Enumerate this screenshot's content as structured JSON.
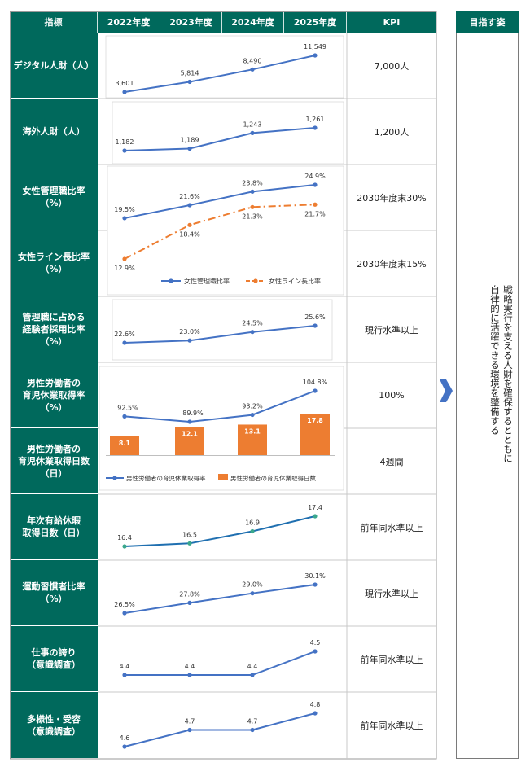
{
  "header": {
    "metric": "指標",
    "years": [
      "2022年度",
      "2023年度",
      "2024年度",
      "2025年度"
    ],
    "kpi": "KPI",
    "goal": "目指す姿"
  },
  "goal_text": "戦略実行を支える人財を確保するとともに\n自律的に活躍できる環境を整備する",
  "colors": {
    "header_bg": "#00695c",
    "line": "#4472c4",
    "dash_line": "#ed7d31",
    "bar": "#ed7d31",
    "arrow": "#4472c4"
  },
  "rows": [
    {
      "label": "デジタル人財（人）",
      "kpi": "7,000人"
    },
    {
      "label": "海外人財（人）",
      "kpi": "1,200人"
    },
    {
      "label": "女性管理職比率\n（%）",
      "kpi": "2030年度末30%"
    },
    {
      "label": "女性ライン長比率\n（%）",
      "kpi": "2030年度末15%"
    },
    {
      "label": "管理職に占める\n経験者採用比率\n（%）",
      "kpi": "現行水準以上"
    },
    {
      "label": "男性労働者の\n育児休業取得率\n（%）",
      "kpi": "100%"
    },
    {
      "label": "男性労働者の\n育児休業取得日数\n（日）",
      "kpi": "4週間"
    },
    {
      "label": "年次有給休暇\n取得日数（日）",
      "kpi": "前年同水準以上"
    },
    {
      "label": "運動習慣者比率\n（%）",
      "kpi": "現行水準以上"
    },
    {
      "label": "仕事の誇り\n（意識調査）",
      "kpi": "前年同水準以上"
    },
    {
      "label": "多様性・受容\n（意識調査）",
      "kpi": "前年同水準以上"
    }
  ],
  "chart_data": [
    {
      "type": "line",
      "x": [
        "2022年度",
        "2023年度",
        "2024年度",
        "2025年度"
      ],
      "series": [
        {
          "values": [
            3601,
            5814,
            8490,
            11549
          ],
          "labels": [
            "3,601",
            "5,814",
            "8,490",
            "11,549"
          ]
        }
      ]
    },
    {
      "type": "line",
      "x": [
        "2022年度",
        "2023年度",
        "2024年度",
        "2025年度"
      ],
      "series": [
        {
          "values": [
            1182,
            1189,
            1243,
            1261
          ],
          "labels": [
            "1,182",
            "1,189",
            "1,243",
            "1,261"
          ]
        }
      ]
    },
    {
      "type": "line",
      "x": [
        "2022年度",
        "2023年度",
        "2024年度",
        "2025年度"
      ],
      "series": [
        {
          "name": "女性管理職比率",
          "values": [
            19.5,
            21.6,
            23.8,
            24.9
          ],
          "labels": [
            "19.5%",
            "21.6%",
            "23.8%",
            "24.9%"
          ],
          "style": "solid"
        },
        {
          "name": "女性ライン長比率",
          "values": [
            12.9,
            18.4,
            21.3,
            21.7
          ],
          "labels": [
            "12.9%",
            "18.4%",
            "21.3%",
            "21.7%"
          ],
          "style": "dash-dot"
        }
      ],
      "legend": "bottom"
    },
    {
      "type": "line",
      "x": [
        "2022年度",
        "2023年度",
        "2024年度",
        "2025年度"
      ],
      "series": [
        {
          "values": [
            22.6,
            23.0,
            24.5,
            25.6
          ],
          "labels": [
            "22.6%",
            "23.0%",
            "24.5%",
            "25.6%"
          ]
        }
      ]
    },
    {
      "type": "bar+line",
      "x": [
        "2022年度",
        "2023年度",
        "2024年度",
        "2025年度"
      ],
      "series": [
        {
          "name": "男性労働者の育児休業取得率",
          "type": "line",
          "values": [
            92.5,
            89.9,
            93.2,
            104.8
          ],
          "labels": [
            "92.5%",
            "89.9%",
            "93.2%",
            "104.8%"
          ]
        },
        {
          "name": "男性労働者の育児休業取得日数",
          "type": "bar",
          "values": [
            8.1,
            12.1,
            13.1,
            17.8
          ],
          "labels": [
            "8.1",
            "12.1",
            "13.1",
            "17.8"
          ]
        }
      ],
      "legend": "bottom"
    },
    {
      "type": "line",
      "x": [
        "2022年度",
        "2023年度",
        "2024年度",
        "2025年度"
      ],
      "series": [
        {
          "values": [
            16.4,
            16.5,
            16.9,
            17.4
          ],
          "labels": [
            "16.4",
            "16.5",
            "16.9",
            "17.4"
          ]
        }
      ]
    },
    {
      "type": "line",
      "x": [
        "2022年度",
        "2023年度",
        "2024年度",
        "2025年度"
      ],
      "series": [
        {
          "values": [
            26.5,
            27.8,
            29.0,
            30.1
          ],
          "labels": [
            "26.5%",
            "27.8%",
            "29.0%",
            "30.1%"
          ]
        }
      ]
    },
    {
      "type": "line",
      "x": [
        "2022年度",
        "2023年度",
        "2024年度",
        "2025年度"
      ],
      "series": [
        {
          "values": [
            4.4,
            4.4,
            4.4,
            4.5
          ],
          "labels": [
            "4.4",
            "4.4",
            "4.4",
            "4.5"
          ]
        }
      ]
    },
    {
      "type": "line",
      "x": [
        "2022年度",
        "2023年度",
        "2024年度",
        "2025年度"
      ],
      "series": [
        {
          "values": [
            4.6,
            4.7,
            4.7,
            4.8
          ],
          "labels": [
            "4.6",
            "4.7",
            "4.7",
            "4.8"
          ]
        }
      ]
    }
  ]
}
